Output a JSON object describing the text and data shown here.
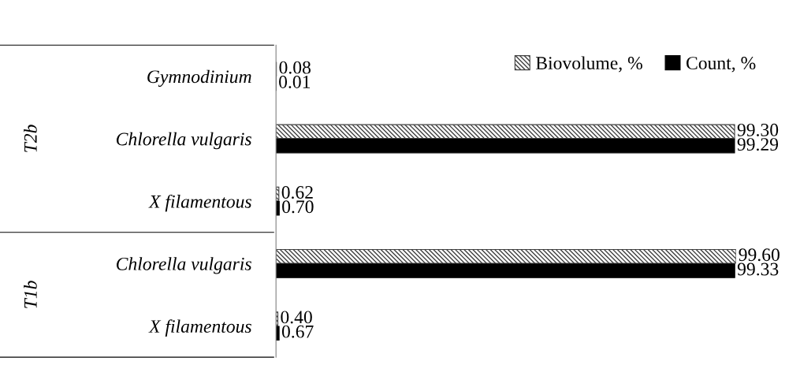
{
  "chart_data": {
    "type": "bar",
    "orientation": "horizontal",
    "categories": [
      "Gymnodinium",
      "Chlorella vulgaris",
      "X filamentous",
      "Chlorella vulgaris",
      "X filamentous"
    ],
    "series": [
      {
        "name": "Biovolume, %",
        "color": "#404040",
        "values": [
          0.08,
          99.3,
          0.62,
          99.6,
          0.4
        ],
        "value_labels": [
          "0.08",
          "99.30",
          "0.62",
          "99.60",
          "0.40"
        ]
      },
      {
        "name": "Count, %",
        "color": "#000000",
        "values": [
          0.01,
          99.29,
          0.7,
          99.33,
          0.67
        ],
        "value_labels": [
          "0.01",
          "99.29",
          "0.70",
          "99.33",
          "0.67"
        ]
      }
    ],
    "annotations": [
      "T2b",
      "T1b"
    ],
    "legend": "top right",
    "grid": false
  }
}
